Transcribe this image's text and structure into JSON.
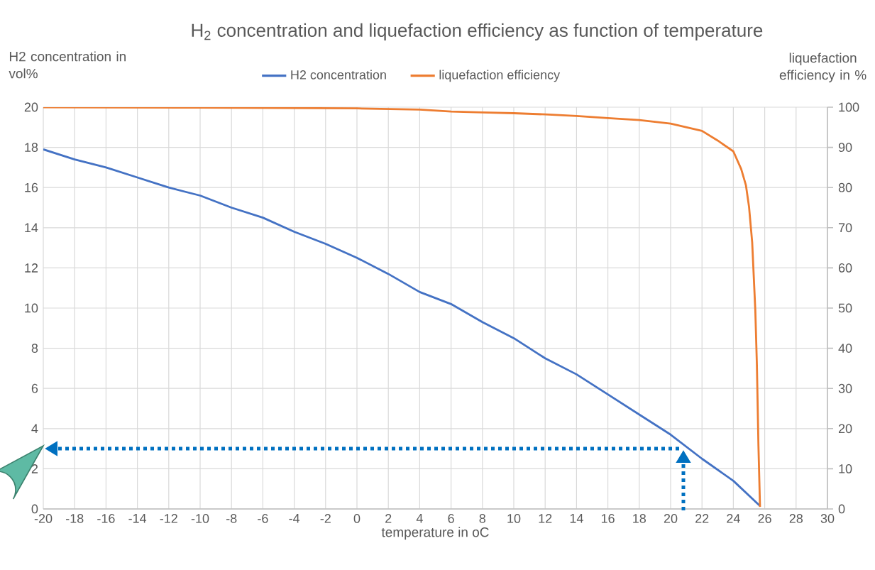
{
  "chart_data": {
    "type": "line",
    "title": "H$_{2}$ concentration and liquefaction efficiency as function of temperature",
    "xlabel": "temperature in oC",
    "ylabel": "H2 concentration in vol%",
    "y2label": "liquefaction efficiency  in %",
    "series": [
      {
        "name": "H2 concentration",
        "color": "#4472c4",
        "x": [
          -20,
          -18,
          -16,
          -14,
          -12,
          -10,
          -8,
          -6,
          -4,
          -2,
          0,
          2,
          4,
          6,
          8,
          10,
          12,
          14,
          16,
          18,
          20,
          22,
          24,
          25.7
        ],
        "values": [
          17.9,
          17.4,
          17.0,
          16.5,
          16.0,
          15.6,
          15.0,
          14.5,
          13.8,
          13.2,
          12.5,
          11.7,
          10.8,
          10.2,
          9.3,
          8.5,
          7.5,
          6.7,
          5.7,
          4.7,
          3.7,
          2.5,
          1.4,
          0.15
        ]
      },
      {
        "name": "liquefaction efficiency",
        "color": "#ed7d31",
        "axis": "y2",
        "x": [
          -20,
          -10,
          0,
          4,
          6,
          8,
          10,
          12,
          14,
          16,
          18,
          20,
          22,
          23,
          24,
          24.5,
          24.8,
          25,
          25.2,
          25.4,
          25.5,
          25.6,
          25.7
        ],
        "values": [
          100,
          99.9,
          99.7,
          99.4,
          98.9,
          98.7,
          98.5,
          98.2,
          97.8,
          97.3,
          96.8,
          95.9,
          94.1,
          91.7,
          89,
          84.6,
          80.6,
          75.2,
          66.4,
          49.5,
          36,
          15.7,
          0.5
        ]
      }
    ],
    "xlim": [
      -20,
      30
    ],
    "xticks": [
      -20,
      -18,
      -16,
      -14,
      -12,
      -10,
      -8,
      -6,
      -4,
      -2,
      0,
      2,
      4,
      6,
      8,
      10,
      12,
      14,
      16,
      18,
      20,
      22,
      24,
      26,
      28,
      30
    ],
    "ylim": [
      0,
      20
    ],
    "yticks": [
      0,
      2,
      4,
      6,
      8,
      10,
      12,
      14,
      16,
      18,
      20
    ],
    "y2lim": [
      0,
      100
    ],
    "y2ticks": [
      0,
      10,
      20,
      30,
      40,
      50,
      60,
      70,
      80,
      90,
      100
    ],
    "grid": true,
    "legend": "top",
    "marker": "none",
    "line_style": "solid"
  }
}
